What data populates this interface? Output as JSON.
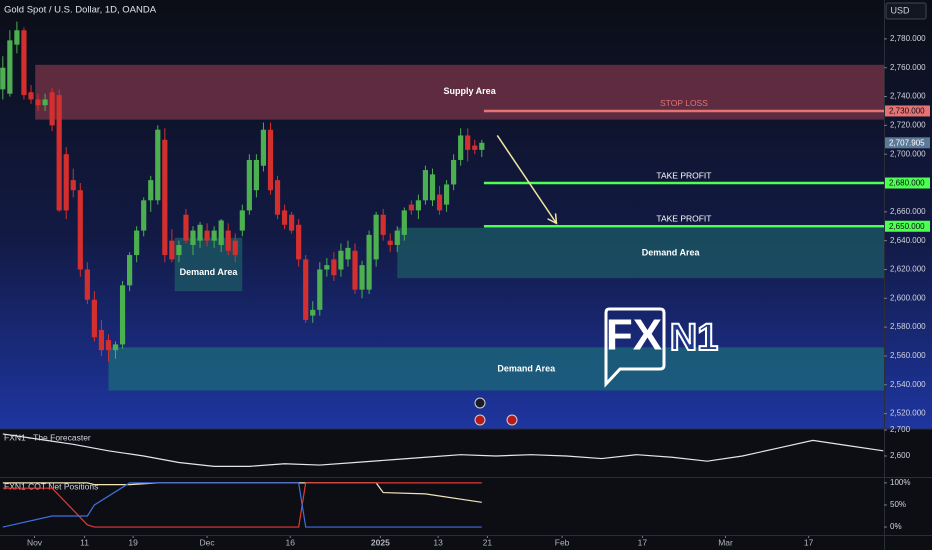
{
  "chart_data": {
    "type": "candlestick",
    "title": "Gold Spot / U.S. Dollar, 1D, OANDA",
    "currency": "USD",
    "up_color": "#4caf50",
    "down_color": "#d32f2f",
    "xlim": [
      -0.4,
      125.1
    ],
    "ylim": [
      2510,
      2807
    ],
    "grid": false,
    "xticks": [
      {
        "value": 4.5,
        "label": "Nov"
      },
      {
        "value": 11.6,
        "label": "11"
      },
      {
        "value": 18.5,
        "label": "19"
      },
      {
        "value": 29,
        "label": "Dec"
      },
      {
        "value": 40.8,
        "label": "16"
      },
      {
        "value": 53.6,
        "label": "2025"
      },
      {
        "value": 61.8,
        "label": "13"
      },
      {
        "value": 68.8,
        "label": "21"
      },
      {
        "value": 79.4,
        "label": "Feb"
      },
      {
        "value": 90.8,
        "label": "17"
      },
      {
        "value": 102.6,
        "label": "Mar"
      },
      {
        "value": 114.4,
        "label": "17"
      }
    ],
    "yticks": [
      {
        "value": 2780,
        "label": "2,780.000"
      },
      {
        "value": 2760,
        "label": "2,760.000"
      },
      {
        "value": 2740,
        "label": "2,740.000"
      },
      {
        "value": 2720,
        "label": "2,720.000"
      },
      {
        "value": 2700,
        "label": "2,700.000"
      },
      {
        "value": 2660,
        "label": "2,660.000"
      },
      {
        "value": 2640,
        "label": "2,640.000"
      },
      {
        "value": 2620,
        "label": "2,620.000"
      },
      {
        "value": 2600,
        "label": "2,600.000"
      },
      {
        "value": 2580,
        "label": "2,580.000"
      },
      {
        "value": 2560,
        "label": "2,560.000"
      },
      {
        "value": 2540,
        "label": "2,540.000"
      },
      {
        "value": 2520,
        "label": "2,520.000"
      }
    ],
    "open": [
      2745,
      2742,
      2776,
      2786,
      2743,
      2738,
      2734,
      2743,
      2741,
      2700,
      2682,
      2675,
      2620,
      2599,
      2578,
      2571,
      2564,
      2568,
      2609,
      2630,
      2647,
      2668,
      2668,
      2710,
      2640,
      2630,
      2658,
      2637,
      2640,
      2647,
      2640,
      2637,
      2647,
      2640,
      2647,
      2661,
      2675,
      2692,
      2717,
      2682,
      2661,
      2658,
      2651,
      2627,
      2588,
      2592,
      2620,
      2627,
      2620,
      2627,
      2633,
      2606,
      2606,
      2627,
      2658,
      2640,
      2637,
      2644,
      2665,
      2661,
      2668,
      2668,
      2672,
      2665,
      2679,
      2696,
      2713,
      2706,
      2703
    ],
    "high": [
      2768,
      2786,
      2792,
      2788,
      2748,
      2742,
      2742,
      2746,
      2745,
      2705,
      2690,
      2680,
      2625,
      2605,
      2585,
      2575,
      2570,
      2612,
      2632,
      2650,
      2670,
      2685,
      2720,
      2718,
      2648,
      2640,
      2662,
      2650,
      2653,
      2652,
      2650,
      2655,
      2652,
      2645,
      2665,
      2700,
      2700,
      2722,
      2722,
      2685,
      2665,
      2660,
      2655,
      2630,
      2598,
      2625,
      2628,
      2632,
      2638,
      2640,
      2638,
      2626,
      2647,
      2660,
      2662,
      2645,
      2650,
      2663,
      2668,
      2672,
      2692,
      2690,
      2678,
      2682,
      2700,
      2718,
      2718,
      2710,
      2710
    ],
    "low": [
      2738,
      2740,
      2770,
      2738,
      2735,
      2730,
      2730,
      2716,
      2660,
      2655,
      2670,
      2615,
      2596,
      2570,
      2560,
      2556,
      2558,
      2565,
      2605,
      2625,
      2643,
      2660,
      2665,
      2625,
      2625,
      2625,
      2638,
      2630,
      2635,
      2636,
      2635,
      2632,
      2630,
      2625,
      2643,
      2658,
      2670,
      2688,
      2672,
      2655,
      2648,
      2645,
      2622,
      2583,
      2583,
      2588,
      2615,
      2612,
      2615,
      2622,
      2603,
      2600,
      2603,
      2622,
      2640,
      2632,
      2632,
      2640,
      2658,
      2655,
      2665,
      2664,
      2658,
      2660,
      2675,
      2692,
      2695,
      2700,
      2698
    ],
    "close": [
      2760,
      2779,
      2786,
      2741,
      2738,
      2734,
      2738,
      2720,
      2661,
      2661,
      2675,
      2620,
      2599,
      2573,
      2564,
      2564,
      2568,
      2609,
      2630,
      2647,
      2668,
      2682,
      2717,
      2630,
      2627,
      2637,
      2640,
      2647,
      2651,
      2640,
      2647,
      2654,
      2633,
      2630,
      2661,
      2696,
      2696,
      2717,
      2675,
      2658,
      2651,
      2647,
      2627,
      2585,
      2592,
      2620,
      2623,
      2616,
      2633,
      2635,
      2606,
      2623,
      2644,
      2658,
      2644,
      2637,
      2647,
      2661,
      2661,
      2668,
      2689,
      2686,
      2661,
      2679,
      2696,
      2713,
      2703,
      2703,
      2707.905
    ],
    "last_price_label": "2,707.905",
    "last_price_color": "#5b7a9a",
    "zones": [
      {
        "label": "Supply Area",
        "from": 2724,
        "to": 2762,
        "x_start": 4.6,
        "color": "#7a3448"
      },
      {
        "label": "Demand Area",
        "from": 2605,
        "to": 2642,
        "x_start": 24.4,
        "x_end": 34,
        "color": "#1c5a64"
      },
      {
        "label": "Demand Area",
        "from": 2614,
        "to": 2649,
        "x_start": 56,
        "color": "#1c5a64"
      },
      {
        "label": "Demand Area",
        "from": 2536,
        "to": 2566,
        "x_start": 15,
        "color": "#1c6a78"
      }
    ],
    "levels": [
      {
        "label": "STOP LOSS",
        "value": 2730,
        "axis_label": "2,730.000",
        "color": "#e57373",
        "x_start": 68.3
      },
      {
        "label": "TAKE PROFIT",
        "value": 2680,
        "axis_label": "2,680.000",
        "color": "#4cff50",
        "x_start": 68.3
      },
      {
        "label": "TAKE PROFIT",
        "value": 2650,
        "axis_label": "2,650.000",
        "color": "#4cff50",
        "x_start": 68.3
      }
    ],
    "arrow": {
      "from": [
        70.2,
        2713
      ],
      "to": [
        78.6,
        2652
      ],
      "color": "#f0e6a0"
    },
    "logo": {
      "left": "FX",
      "right": "N1"
    },
    "indicators": [
      {
        "title": "FXN1 - The Forecaster",
        "ylim": [
          2519,
          2704
        ],
        "yticks": [
          {
            "value": 2700,
            "label": "2,700"
          },
          {
            "value": 2600,
            "label": "2,600"
          }
        ],
        "x": [
          0,
          5,
          10,
          15,
          20,
          25,
          30,
          35,
          40,
          45,
          50,
          55,
          60,
          65,
          70,
          75,
          80,
          85,
          90,
          95,
          100,
          105,
          110,
          115,
          120,
          125
        ],
        "series": [
          {
            "color": "#e6e6e6",
            "values": [
              2685,
              2665,
              2645,
              2620,
              2600,
              2575,
              2560,
              2560,
              2570,
              2565,
              2575,
              2585,
              2595,
              2605,
              2600,
              2605,
              2600,
              2590,
              2605,
              2595,
              2580,
              2600,
              2630,
              2660,
              2640,
              2620
            ]
          }
        ]
      },
      {
        "title": "FXN1 COT Net Positions",
        "ylim": [
          -18,
          111
        ],
        "yticks": [
          {
            "value": 100,
            "label": "100%"
          },
          {
            "value": 50,
            "label": "50%"
          },
          {
            "value": 0,
            "label": "0%"
          }
        ],
        "x": [
          0,
          7,
          12,
          13,
          18,
          22,
          31,
          42,
          43,
          53,
          54,
          60,
          68
        ],
        "series": [
          {
            "color": "#f3e6b8",
            "values": [
              100,
              100,
              100,
              96,
              96,
              100,
              100,
              100,
              100,
              100,
              78,
              75,
              56
            ]
          },
          {
            "color": "#e53935",
            "values": [
              88,
              88,
              5,
              0,
              0,
              0,
              0,
              0,
              100,
              100,
              100,
              100,
              100
            ]
          },
          {
            "color": "#3f6fe0",
            "values": [
              0,
              25,
              25,
              50,
              100,
              100,
              100,
              100,
              0,
              0,
              0,
              0,
              0
            ]
          }
        ]
      }
    ]
  }
}
